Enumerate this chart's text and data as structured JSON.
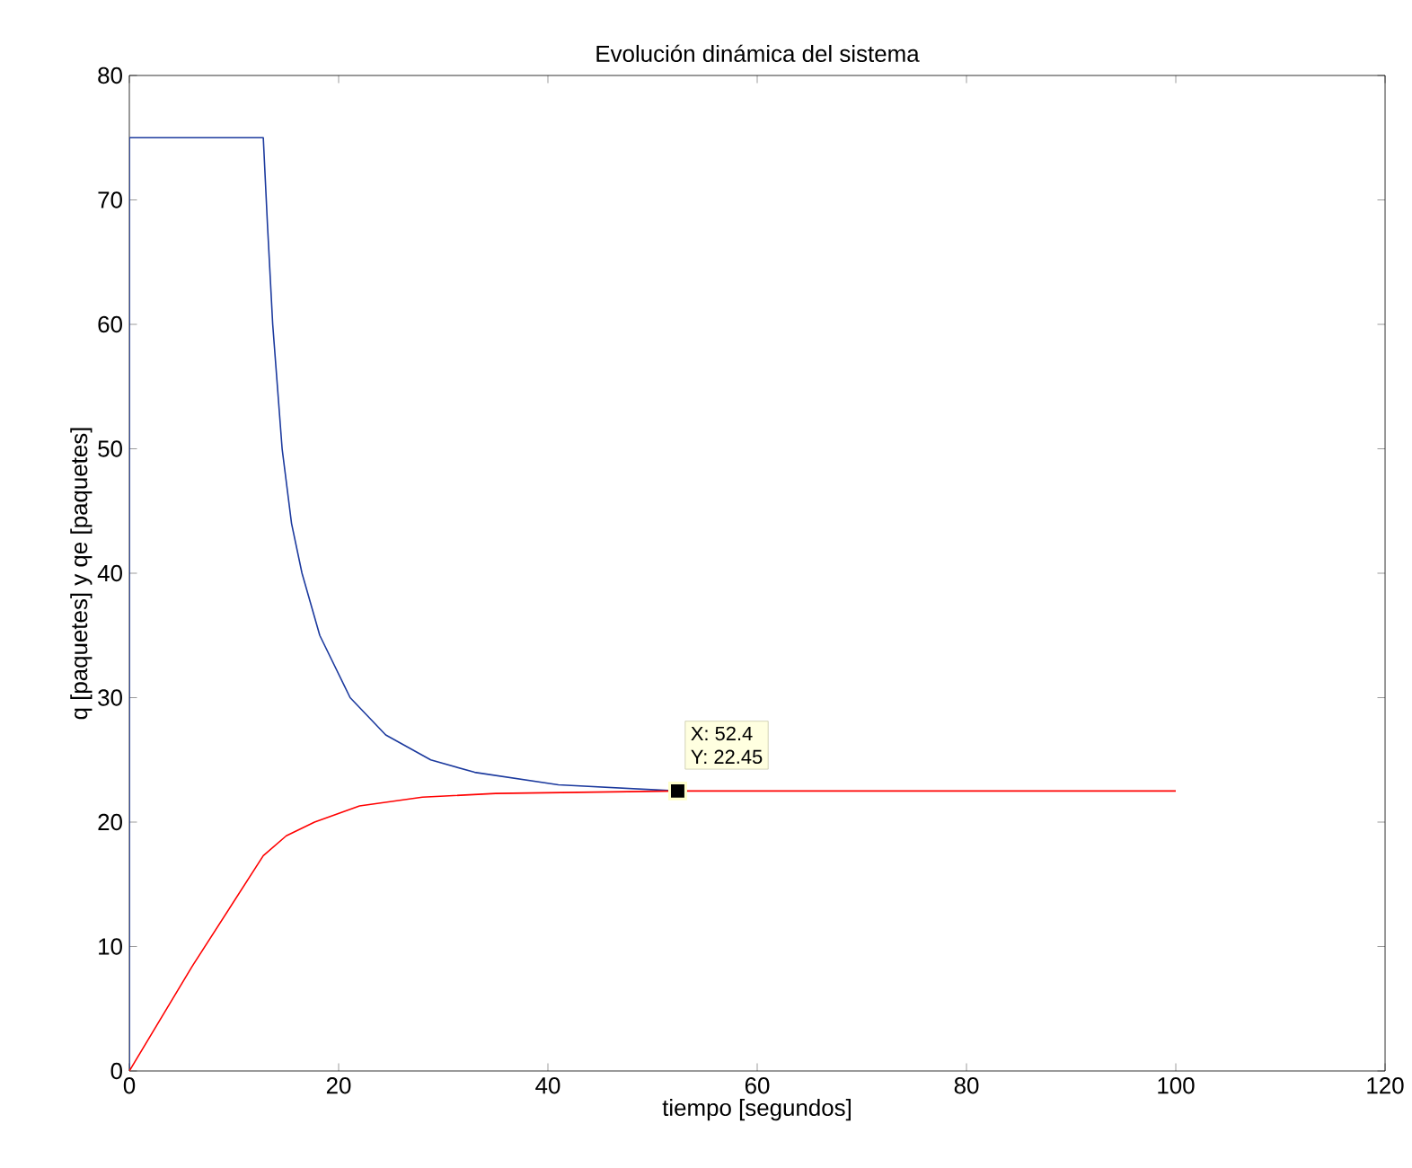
{
  "chart_data": {
    "type": "line",
    "title": "Evolución dinámica del sistema",
    "xlabel": "tiempo [segundos]",
    "ylabel": "q [paquetes] y qe [paquetes]",
    "xlim": [
      0,
      120
    ],
    "ylim": [
      0,
      80
    ],
    "xticks": [
      0,
      20,
      40,
      60,
      80,
      100,
      120
    ],
    "yticks": [
      0,
      10,
      20,
      30,
      40,
      50,
      60,
      70,
      80
    ],
    "grid": false,
    "marker": "none",
    "line_style": "solid",
    "series": [
      {
        "color": "#1c3a9e",
        "x": [
          0,
          0,
          12.8,
          13.2,
          13.7,
          14.6,
          15.5,
          16.5,
          18.2,
          21.1,
          24.5,
          28.8,
          33,
          41,
          52.4
        ],
        "values": [
          0,
          75,
          75,
          68,
          60,
          50,
          44,
          40,
          35,
          30,
          27,
          25,
          24,
          23,
          22.5
        ]
      },
      {
        "color": "#ff0000",
        "x": [
          0,
          6,
          12.8,
          15,
          17.7,
          22,
          28,
          35,
          52.4,
          100
        ],
        "values": [
          0,
          8.4,
          17.3,
          18.9,
          20,
          21.3,
          22,
          22.3,
          22.5,
          22.5
        ]
      },
      {
        "type": "scatter",
        "color": "#000000",
        "marker": "square",
        "x": [
          52.4
        ],
        "values": [
          22.5
        ]
      }
    ],
    "annotations": [
      "X: 52.4",
      "Y: 22.45"
    ]
  }
}
